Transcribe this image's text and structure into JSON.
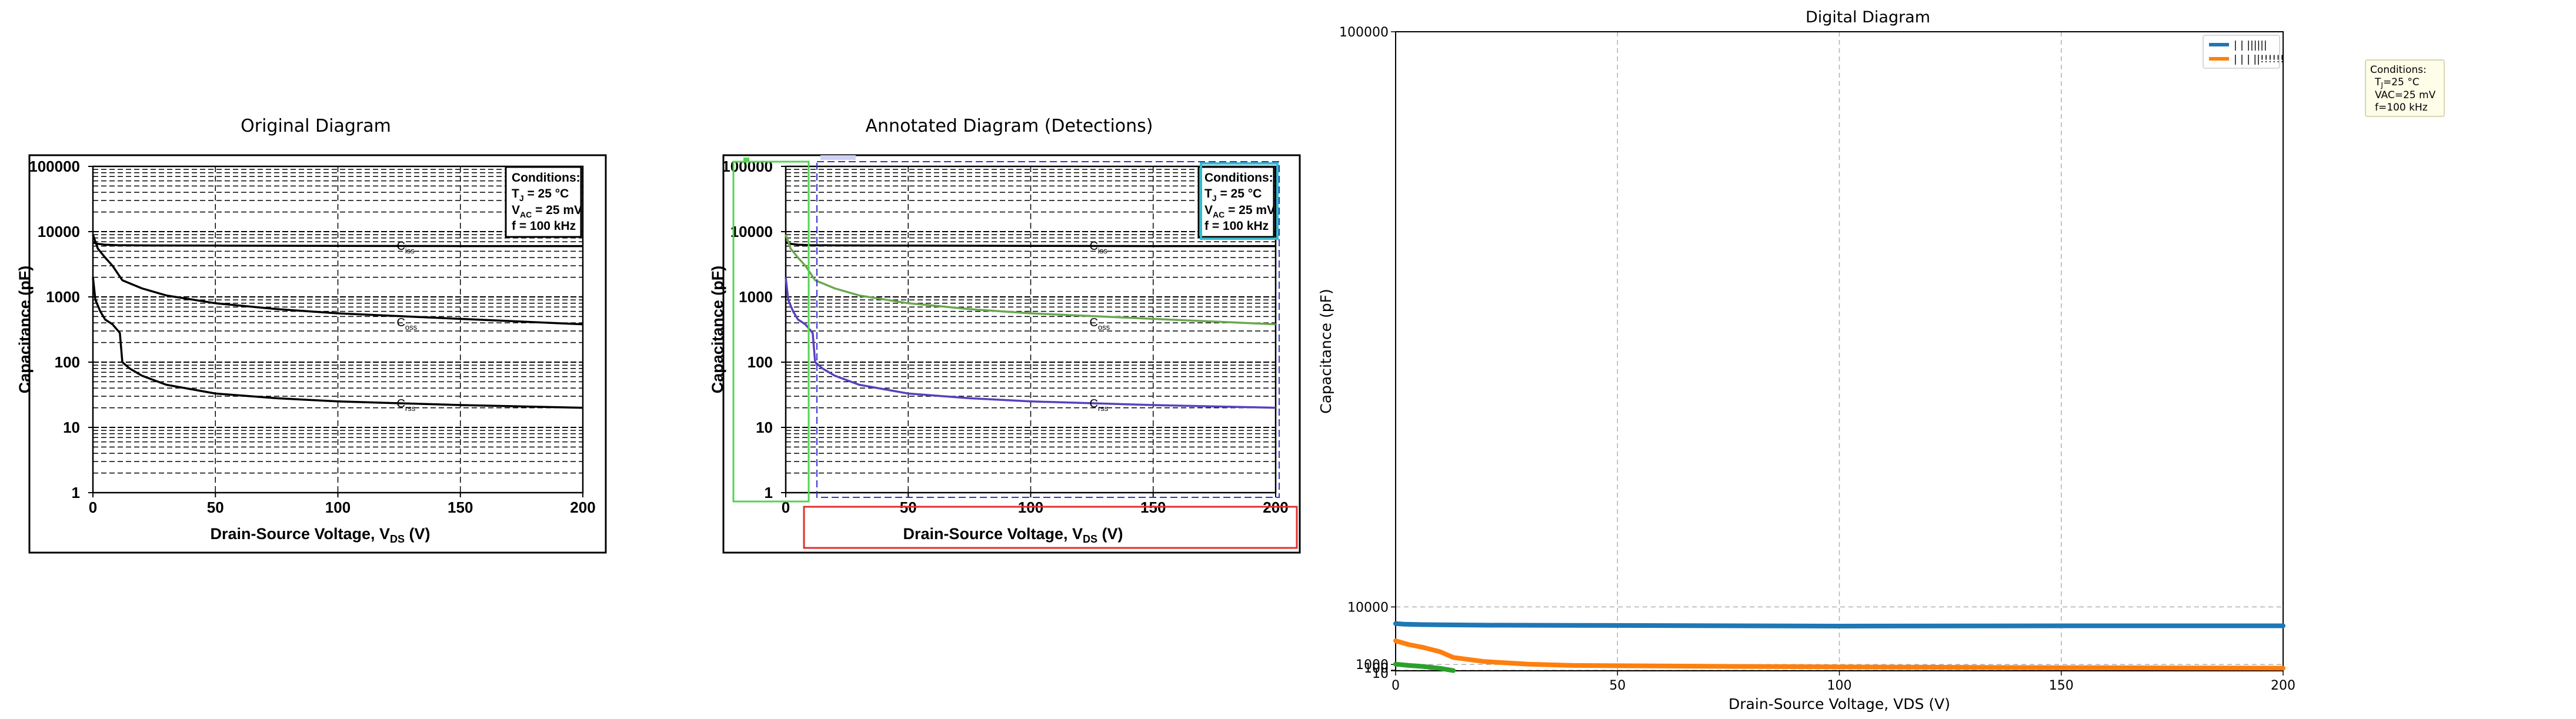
{
  "panels": {
    "original_title": "Original Diagram",
    "annotated_title": "Annotated Diagram (Detections)",
    "digital_title": "Digital Diagram"
  },
  "datasheet": {
    "y_ticks": [
      "1",
      "10",
      "100",
      "1000",
      "10000",
      "100000"
    ],
    "x_ticks": [
      "0",
      "50",
      "100",
      "150",
      "200"
    ],
    "y_label": "Capacitance (pF)",
    "x_label_main": "Drain-Source Voltage, V",
    "x_label_sub": "DS",
    "x_label_unit": " (V)",
    "conditions": {
      "title": "Conditions:",
      "line1_main": "T",
      "line1_sub": "J",
      "line1_rest": " = 25 °C",
      "line2_main": "V",
      "line2_sub": "AC",
      "line2_rest": " = 25 mV",
      "line3": "f = 100 kHz"
    },
    "curve_labels": {
      "ciss_main": "C",
      "ciss_sub": "iss",
      "coss_main": "C",
      "coss_sub": "oss",
      "crss_main": "C",
      "crss_sub": "rss"
    }
  },
  "digital": {
    "y_label": "Capacitance (pF)",
    "x_label": "Drain-Source Voltage, VDS (V)",
    "y_ticks": [
      "10",
      "100",
      "1000",
      "10000",
      "100000"
    ],
    "x_ticks": [
      "0",
      "50",
      "100",
      "150",
      "200"
    ],
    "legend": [
      "| | ||||||",
      "| | | ||!!!!!!"
    ],
    "conditions": {
      "title": "Conditions:",
      "line1_main": "T",
      "line1_sub": "J",
      "line1_rest": "=25 °C",
      "line2": "VAC=25 mV",
      "line3": "f=100 kHz"
    }
  },
  "colors": {
    "ciss": "#1f77b4",
    "coss": "#ff7f0e",
    "crss": "#2ca02c",
    "det_green": "#52d452",
    "det_red": "#e03030",
    "det_cyan": "#33bbcc",
    "det_blue": "#3333cc",
    "curve_green": "#6aa84f",
    "curve_purple": "#5a3fbf",
    "conditions_fill": "#fdfde8",
    "conditions_edge": "#c9c9a0"
  },
  "chart_data": [
    {
      "type": "line",
      "title": "Original Diagram",
      "xlabel": "Drain-Source Voltage, VDS (V)",
      "ylabel": "Capacitance (pF)",
      "xlim": [
        0,
        200
      ],
      "ylim": [
        1,
        100000
      ],
      "y_scale": "log",
      "grid": true,
      "series": [
        {
          "name": "Ciss",
          "x": [
            0,
            2,
            5,
            10,
            20,
            50,
            100,
            150,
            200
          ],
          "y": [
            6800,
            6500,
            6300,
            6200,
            6150,
            6100,
            6050,
            6000,
            6000
          ]
        },
        {
          "name": "Coss",
          "x": [
            0,
            2,
            5,
            8,
            12,
            20,
            30,
            50,
            75,
            100,
            150,
            200
          ],
          "y": [
            9000,
            5500,
            4000,
            3000,
            1800,
            1350,
            1050,
            800,
            650,
            560,
            460,
            380
          ]
        },
        {
          "name": "Crss",
          "x": [
            0,
            1,
            3,
            5,
            8,
            11,
            12,
            15,
            20,
            30,
            50,
            75,
            100,
            150,
            200
          ],
          "y": [
            2000,
            900,
            600,
            450,
            380,
            280,
            100,
            80,
            62,
            45,
            33,
            28,
            25,
            22,
            20
          ]
        }
      ]
    },
    {
      "type": "line",
      "title": "Digital Diagram",
      "xlabel": "Drain-Source Voltage, VDS (V)",
      "ylabel": "Capacitance (pF)",
      "xlim": [
        0,
        200
      ],
      "ylim": [
        10,
        100000
      ],
      "grid": true,
      "legend_position": "top-right",
      "series": [
        {
          "name": "| | ||||||",
          "x": [
            0,
            2,
            5,
            10,
            20,
            50,
            100,
            150,
            200
          ],
          "y": [
            7400,
            7300,
            7250,
            7200,
            7150,
            7100,
            7000,
            7050,
            7050
          ]
        },
        {
          "name": "| | | ||!!!!!!",
          "x": [
            0,
            3,
            6,
            10,
            13,
            20,
            30,
            40,
            50,
            75,
            100,
            150,
            200
          ],
          "y": [
            4700,
            4100,
            3700,
            3000,
            2100,
            1450,
            1050,
            850,
            800,
            700,
            620,
            500,
            420
          ]
        },
        {
          "name": "",
          "x": [
            0,
            3,
            6,
            10,
            13
          ],
          "y": [
            1050,
            850,
            700,
            400,
            50
          ]
        }
      ]
    }
  ]
}
